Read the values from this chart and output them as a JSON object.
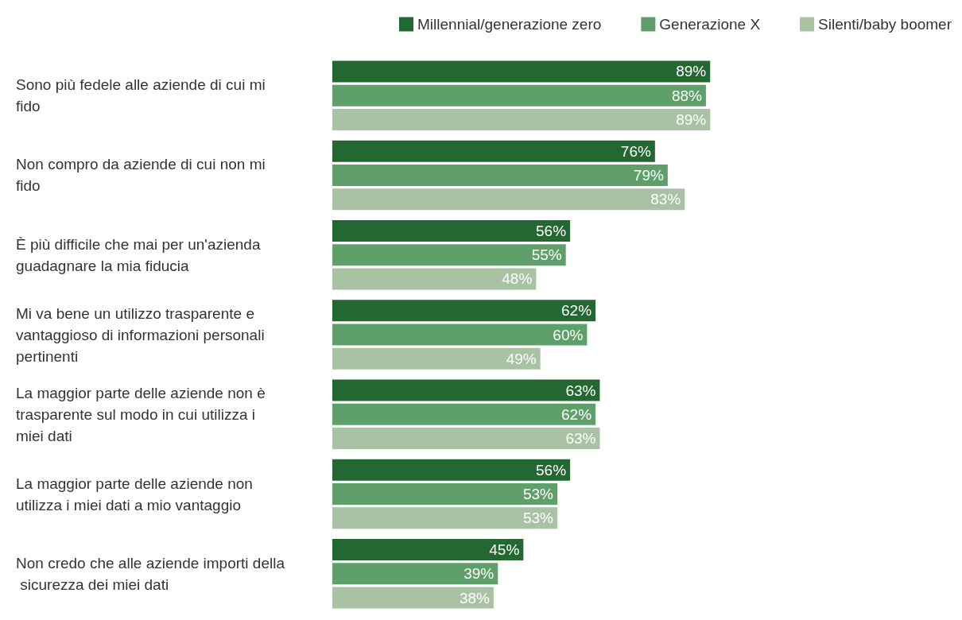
{
  "chart_data": {
    "type": "bar",
    "orientation": "horizontal",
    "categories": [
      "Sono più fedele alle aziende di cui mi fido",
      "Non compro da aziende di cui non mi fido",
      "È più difficile che mai per un'azienda guadagnare la mia fiducia",
      "Mi va bene un utilizzo trasparente e vantaggioso di informazioni personali pertinenti",
      "La maggior parte delle aziende non è trasparente sul modo in cui utilizza i miei dati",
      "La maggior parte delle aziende non utilizza i miei dati a mio vantaggio",
      "Non credo che alle aziende importi della sicurezza dei miei dati"
    ],
    "series": [
      {
        "name": "Millennial/generazione zero",
        "color": "#236830",
        "values": [
          89,
          76,
          56,
          62,
          63,
          56,
          45
        ],
        "value_labels": [
          "89%",
          "76%",
          "56%",
          "62%",
          "63%",
          "56%",
          "45%"
        ]
      },
      {
        "name": "Generazione X",
        "color": "#5fa06a",
        "values": [
          88,
          79,
          55,
          60,
          62,
          53,
          39
        ],
        "value_labels": [
          "88%",
          "79%",
          "55%",
          "60%",
          "62%",
          "53%",
          "39%"
        ]
      },
      {
        "name": "Silenti/baby boomer",
        "color": "#a8c2a3",
        "values": [
          89,
          83,
          48,
          49,
          63,
          53,
          38
        ],
        "value_labels": [
          "89%",
          "83%",
          "48%",
          "49%",
          "63%",
          "53%",
          "38%"
        ]
      }
    ],
    "legend": "top right"
  }
}
